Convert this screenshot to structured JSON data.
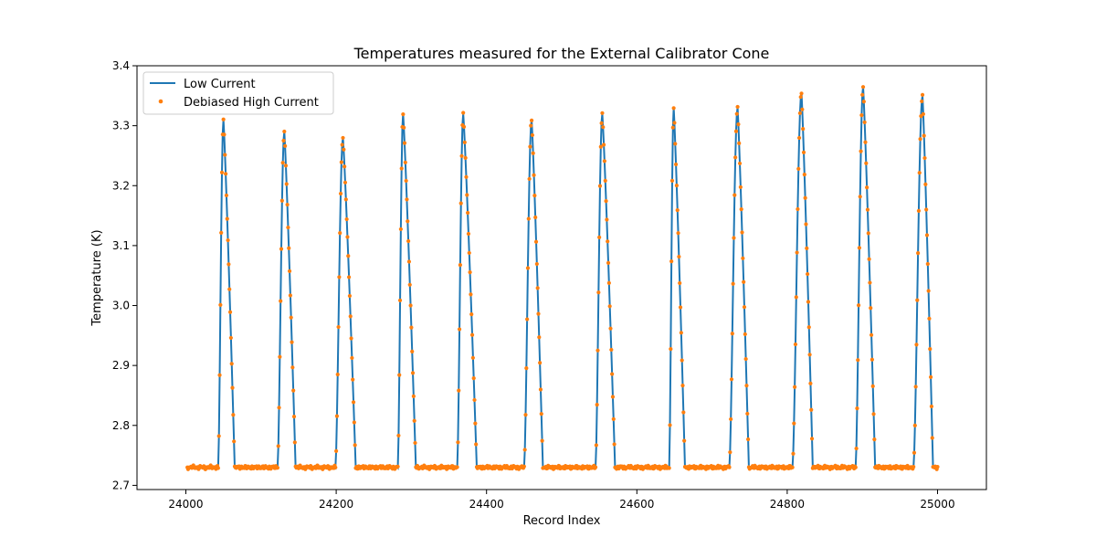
{
  "chart_data": {
    "type": "line",
    "title": "Temperatures measured for the External Calibrator Cone",
    "xlabel": "Record Index",
    "ylabel": "Temperature (K)",
    "xlim": [
      23935,
      25065
    ],
    "ylim": [
      2.693,
      3.4
    ],
    "x_ticks": [
      24000,
      24200,
      24400,
      24600,
      24800,
      25000
    ],
    "y_ticks": [
      2.7,
      2.8,
      2.9,
      3.0,
      3.1,
      3.2,
      3.3,
      3.4
    ],
    "baseline": 2.73,
    "legend_position": "upper-left",
    "series": [
      {
        "name": "Low Current",
        "style": "line",
        "color": "#1f77b4"
      },
      {
        "name": "Debiased High Current",
        "style": "scatter",
        "color": "#ff7f0e"
      }
    ],
    "peaks": [
      {
        "start": 24043,
        "peak_x": 24050,
        "end": 24065,
        "peak": 3.31
      },
      {
        "start": 24122,
        "peak_x": 24131,
        "end": 24146,
        "peak": 3.29
      },
      {
        "start": 24199,
        "peak_x": 24209,
        "end": 24226,
        "peak": 3.28
      },
      {
        "start": 24282,
        "peak_x": 24289,
        "end": 24306,
        "peak": 3.32
      },
      {
        "start": 24361,
        "peak_x": 24369,
        "end": 24387,
        "peak": 3.32
      },
      {
        "start": 24450,
        "peak_x": 24460,
        "end": 24475,
        "peak": 3.31
      },
      {
        "start": 24545,
        "peak_x": 24554,
        "end": 24571,
        "peak": 3.32
      },
      {
        "start": 24643,
        "peak_x": 24649,
        "end": 24664,
        "peak": 3.33
      },
      {
        "start": 24723,
        "peak_x": 24734,
        "end": 24749,
        "peak": 3.33
      },
      {
        "start": 24807,
        "peak_x": 24819,
        "end": 24834,
        "peak": 3.355
      },
      {
        "start": 24891,
        "peak_x": 24901,
        "end": 24917,
        "peak": 3.365
      },
      {
        "start": 24968,
        "peak_x": 24980,
        "end": 24994,
        "peak": 3.35
      }
    ],
    "x_range": [
      24002,
      25000
    ]
  }
}
